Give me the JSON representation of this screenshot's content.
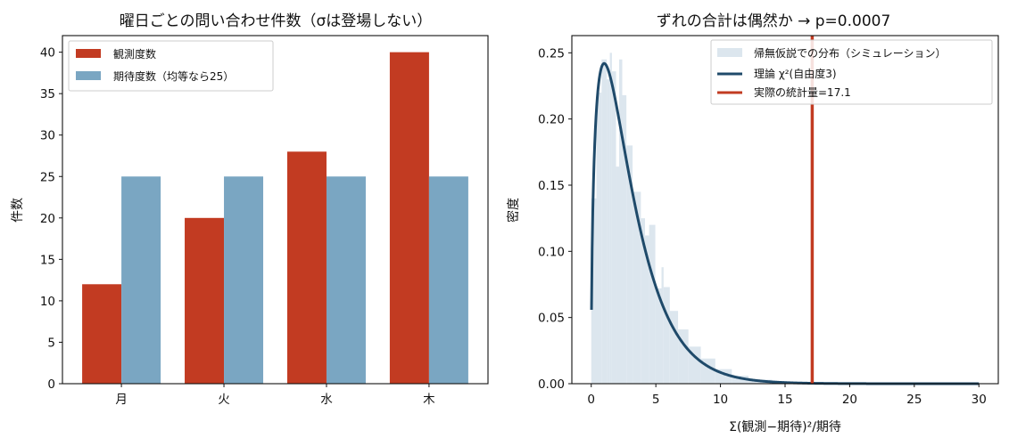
{
  "chart_data": [
    {
      "type": "bar",
      "title": "曜日ごとの問い合わせ件数（σは登場しない）",
      "xlabel": "",
      "ylabel": "件数",
      "categories": [
        "月",
        "火",
        "水",
        "木"
      ],
      "series": [
        {
          "name": "観測度数",
          "values": [
            12,
            20,
            28,
            40
          ],
          "color": "#c23b22"
        },
        {
          "name": "期待度数（均等なら25）",
          "values": [
            25,
            25,
            25,
            25
          ],
          "color": "#7aa6c2"
        }
      ],
      "ylim": [
        0,
        42
      ],
      "yticks": [
        0,
        5,
        10,
        15,
        20,
        25,
        30,
        35,
        40
      ],
      "legend_position": "top-left",
      "grid": false
    },
    {
      "type": "histogram+line",
      "title": "ずれの合計は偶然か → p=0.0007",
      "xlabel": "Σ(観測−期待)²/期待",
      "ylabel": "密度",
      "xlim": [
        -1.5,
        31.5
      ],
      "ylim": [
        0,
        0.263
      ],
      "xticks": [
        0,
        5,
        10,
        15,
        20,
        25,
        30
      ],
      "yticks": [
        0.0,
        0.05,
        0.1,
        0.15,
        0.2,
        0.25
      ],
      "yticklabels": [
        "0.00",
        "0.05",
        "0.10",
        "0.15",
        "0.20",
        "0.25"
      ],
      "legend_position": "top-right",
      "grid": false,
      "histogram": {
        "name": "帰無仮説での分布（シミュレーション）",
        "color": "#dce6ee",
        "bins": [
          [
            0.0,
            0.4,
            0.14
          ],
          [
            0.4,
            0.8,
            0.22
          ],
          [
            0.8,
            1.2,
            0.245
          ],
          [
            1.2,
            1.44,
            0.23
          ],
          [
            1.44,
            1.6,
            0.25
          ],
          [
            1.6,
            1.92,
            0.236
          ],
          [
            1.92,
            2.16,
            0.164
          ],
          [
            2.16,
            2.4,
            0.245
          ],
          [
            2.4,
            2.72,
            0.218
          ],
          [
            2.72,
            3.2,
            0.18
          ],
          [
            3.2,
            3.84,
            0.145
          ],
          [
            3.84,
            4.16,
            0.125
          ],
          [
            4.16,
            4.48,
            0.112
          ],
          [
            4.48,
            4.96,
            0.12
          ],
          [
            4.96,
            5.44,
            0.072
          ],
          [
            5.44,
            5.6,
            0.088
          ],
          [
            5.6,
            6.08,
            0.073
          ],
          [
            6.08,
            6.72,
            0.055
          ],
          [
            6.72,
            7.52,
            0.041
          ],
          [
            7.52,
            8.48,
            0.028
          ],
          [
            8.48,
            9.6,
            0.019
          ],
          [
            9.6,
            10.88,
            0.011
          ],
          [
            10.88,
            12.16,
            0.006
          ],
          [
            12.16,
            14.0,
            0.003
          ],
          [
            14.0,
            16.0,
            0.001
          ],
          [
            16.0,
            17.0,
            0.0005
          ]
        ]
      },
      "curve": {
        "name": "理論 χ²(自由度3)",
        "df": 3,
        "x_range": [
          0,
          30
        ],
        "color": "#1f4a6a"
      },
      "vline": {
        "name": "実際の統計量=17.1",
        "x": 17.1,
        "color": "#c23b22"
      }
    }
  ]
}
